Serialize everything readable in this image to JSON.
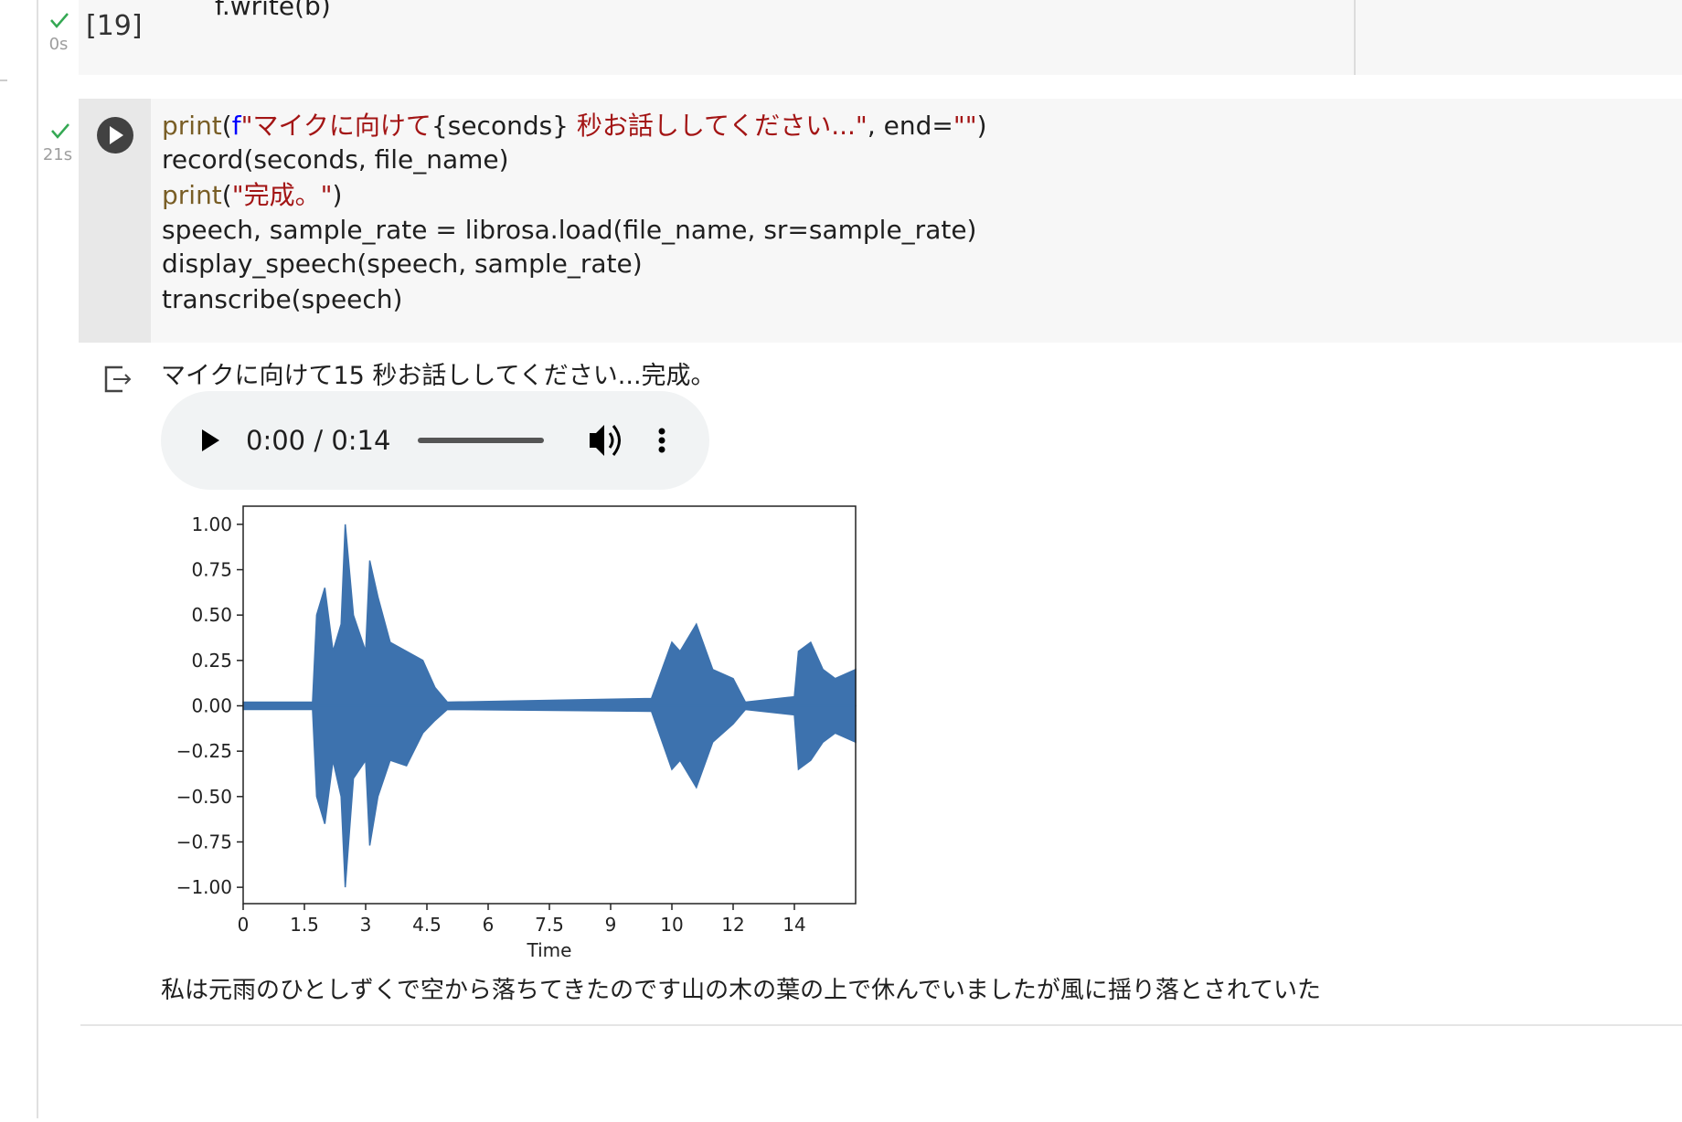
{
  "previous_cell": {
    "status": "0s",
    "execution_count": "[19]",
    "code": "f.write(b)"
  },
  "cell": {
    "status": "21s",
    "code_lines": [
      [
        {
          "text": "print",
          "color": "#795e26"
        },
        {
          "text": "(",
          "color": "#1f1f1f"
        },
        {
          "text": "f",
          "color": "#0000ff"
        },
        {
          "text": "\"マイクに向けて",
          "color": "#a31515"
        },
        {
          "text": "{seconds}",
          "color": "#1f1f1f"
        },
        {
          "text": " 秒お話ししてください...\"",
          "color": "#a31515"
        },
        {
          "text": ", end=",
          "color": "#1f1f1f"
        },
        {
          "text": "\"\"",
          "color": "#a31515"
        },
        {
          "text": ")",
          "color": "#1f1f1f"
        }
      ],
      [
        {
          "text": "record(seconds, file_name)",
          "color": "#1f1f1f"
        }
      ],
      [
        {
          "text": "print",
          "color": "#795e26"
        },
        {
          "text": "(",
          "color": "#1f1f1f"
        },
        {
          "text": "\"完成。\"",
          "color": "#a31515"
        },
        {
          "text": ")",
          "color": "#1f1f1f"
        }
      ],
      [
        {
          "text": "speech, sample_rate = librosa.load(file_name, sr=sample_rate)",
          "color": "#1f1f1f"
        }
      ],
      [
        {
          "text": "display_speech(speech, sample_rate)",
          "color": "#1f1f1f"
        }
      ],
      [
        {
          "text": "transcribe(speech)",
          "color": "#1f1f1f"
        }
      ]
    ]
  },
  "output": {
    "text": "マイクに向けて15 秒お話ししてください...完成。",
    "audio_time": "0:00 / 0:14",
    "transcription": "私は元雨のひとしずくで空から落ちてきたのです山の木の葉の上で休んでいましたが風に揺り落とされていた"
  },
  "chart_data": {
    "type": "area",
    "xlabel": "Time",
    "x": [
      0,
      1.7,
      1.8,
      2.0,
      2.2,
      2.4,
      2.5,
      2.7,
      3.0,
      3.1,
      3.3,
      3.6,
      4.0,
      4.4,
      4.7,
      5.0,
      10.0,
      10.5,
      10.7,
      11.1,
      11.5,
      12.0,
      12.3,
      13.5,
      13.6,
      13.9,
      14.2,
      14.5,
      15.0
    ],
    "series": [
      {
        "color": "#3d72ae",
        "values": [
          0.02,
          0.02,
          0.5,
          0.65,
          0.3,
          0.45,
          1.0,
          0.5,
          0.3,
          0.8,
          0.6,
          0.35,
          0.3,
          0.25,
          0.1,
          0.02,
          0.04,
          0.35,
          0.3,
          0.45,
          0.2,
          0.15,
          0.02,
          0.05,
          0.3,
          0.35,
          0.2,
          0.15,
          0.2
        ]
      },
      {
        "color": "#3d72ae",
        "values": [
          -0.02,
          -0.02,
          -0.5,
          -0.65,
          -0.3,
          -0.5,
          -1.0,
          -0.4,
          -0.3,
          -0.77,
          -0.5,
          -0.3,
          -0.33,
          -0.15,
          -0.08,
          -0.02,
          -0.03,
          -0.35,
          -0.3,
          -0.45,
          -0.2,
          -0.1,
          -0.02,
          -0.05,
          -0.35,
          -0.3,
          -0.2,
          -0.15,
          -0.2
        ]
      }
    ],
    "xlim": [
      0,
      15
    ],
    "ylim": [
      -1.09,
      1.1
    ],
    "xticks": [
      0,
      1.5,
      3,
      4.5,
      6,
      7.5,
      9,
      {
        "value": 10.5,
        "label": "10"
      },
      12,
      {
        "value": 13.5,
        "label": "14"
      }
    ],
    "yticks": [
      {
        "value": 1,
        "label": "1.00"
      },
      {
        "value": 0.75,
        "label": "0.75"
      },
      {
        "value": 0.5,
        "label": "0.50"
      },
      {
        "value": 0.25,
        "label": "0.25"
      },
      {
        "value": 0,
        "label": "0.00"
      },
      {
        "value": -0.25,
        "label": "−0.25"
      },
      {
        "value": -0.5,
        "label": "−0.50"
      },
      {
        "value": -0.75,
        "label": "−0.75"
      },
      {
        "value": -1,
        "label": "−1.00"
      }
    ]
  }
}
